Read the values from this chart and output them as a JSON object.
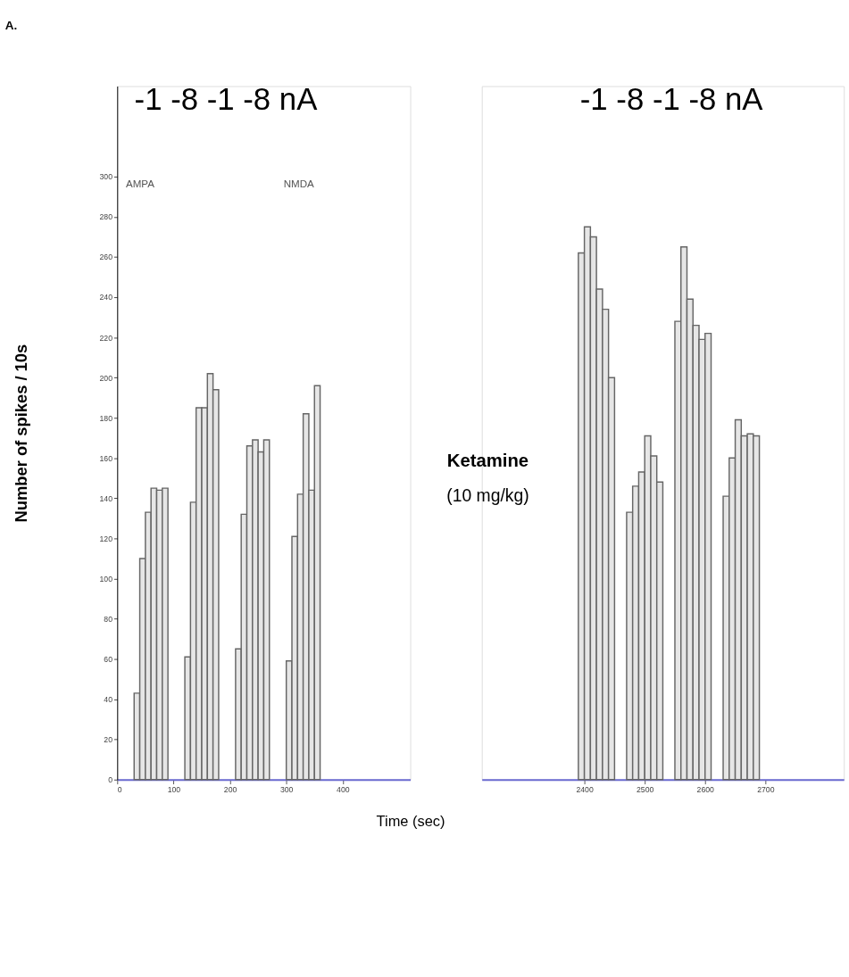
{
  "chart_data": [
    {
      "type": "bar",
      "ylabel": "Number of spikes / 10s",
      "xlabel": "Time (sec)",
      "x": [
        35,
        45,
        55,
        65,
        75,
        85,
        125,
        135,
        145,
        155,
        165,
        175,
        215,
        225,
        235,
        245,
        255,
        265,
        305,
        315,
        325,
        335,
        345,
        355
      ],
      "series": [
        {
          "color": "#e6e6e6",
          "values": [
            43,
            110,
            133,
            145,
            144,
            145,
            61,
            138,
            185,
            185,
            202,
            194,
            65,
            132,
            166,
            169,
            163,
            169,
            59,
            121,
            142,
            182,
            144,
            196
          ]
        }
      ],
      "xlim": [
        0,
        520
      ],
      "xticks": [
        0,
        100,
        200,
        300,
        400
      ],
      "ylim": [
        0,
        345
      ],
      "yticks": [
        0,
        20,
        40,
        60,
        80,
        100,
        120,
        140,
        160,
        180,
        200,
        220,
        240,
        260,
        280,
        300
      ],
      "annotations": [
        "A.",
        "-1 -8 -1 -8 nA",
        "AMPA",
        "NMDA"
      ]
    },
    {
      "type": "bar",
      "x": [
        2395,
        2405,
        2415,
        2425,
        2435,
        2445,
        2475,
        2485,
        2495,
        2505,
        2515,
        2525,
        2555,
        2565,
        2575,
        2585,
        2595,
        2605,
        2635,
        2645,
        2655,
        2665,
        2675,
        2685
      ],
      "series": [
        {
          "color": "#e6e6e6",
          "values": [
            262,
            275,
            270,
            244,
            234,
            200,
            133,
            146,
            153,
            171,
            161,
            148,
            228,
            265,
            239,
            226,
            219,
            222,
            141,
            160,
            179,
            171,
            172,
            171
          ]
        }
      ],
      "xlim": [
        2230,
        2830
      ],
      "xticks": [
        {
          "value": 2400,
          "label": "2400"
        },
        {
          "value": 2500,
          "label": "2500"
        },
        {
          "value": 2600,
          "label": "2600"
        },
        {
          "value": 2700,
          "label": "2700"
        }
      ],
      "ylim": [
        0,
        345
      ],
      "tick_labels": "x",
      "annotations": [
        "-1 -8 -1 -8 nA",
        "Ketamine",
        "(10 mg/kg)"
      ]
    }
  ]
}
